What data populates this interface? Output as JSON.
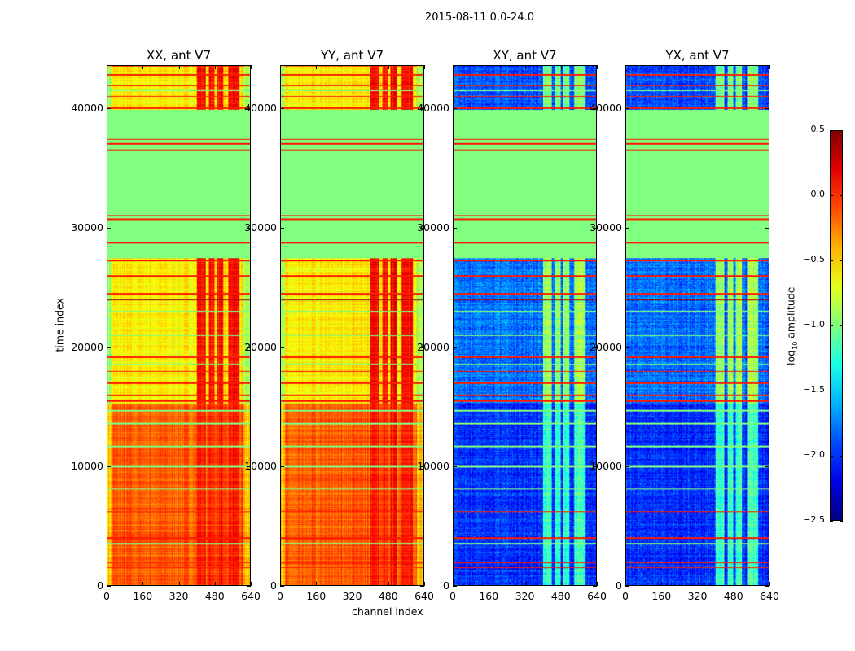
{
  "chart_data": {
    "type": "heatmap",
    "title": "2015-08-11 0.0-24.0",
    "xlabel": "channel index",
    "ylabel": "time index",
    "xlim": [
      0,
      640
    ],
    "ylim": [
      0,
      43630
    ],
    "xticks": [
      "0",
      "160",
      "320",
      "480",
      "640"
    ],
    "yticks": [
      "0",
      "10000",
      "20000",
      "30000",
      "40000"
    ],
    "colormap": "jet",
    "colorbar": {
      "label": "log10 amplitude",
      "label_main": "log",
      "label_sub": "10",
      "label_rest": " amplitude",
      "range": [
        -2.5,
        0.5
      ],
      "ticks": [
        "0.5",
        "0.0",
        "−0.5",
        "−1.0",
        "−1.5",
        "−2.0",
        "−2.5"
      ]
    },
    "panels": [
      {
        "title": "XX, ant V7",
        "kind": "auto"
      },
      {
        "title": "YY, ant V7",
        "kind": "auto"
      },
      {
        "title": "XY, ant V7",
        "kind": "cross"
      },
      {
        "title": "YX, ant V7",
        "kind": "cross"
      }
    ],
    "regions": [
      {
        "t": [
          0,
          15300
        ],
        "auto": -0.15,
        "auto_rfi": 0.05,
        "cross": -2.0,
        "cross_rfi": -1.2
      },
      {
        "t": [
          15300,
          27500
        ],
        "auto": -0.6,
        "auto_rfi": 0.1,
        "cross": -1.8,
        "cross_rfi": -0.9
      },
      {
        "t": [
          27500,
          40000
        ],
        "auto": -1.0,
        "auto_rfi": -1.0,
        "cross": -1.0,
        "cross_rfi": -1.0,
        "flagged": true
      },
      {
        "t": [
          40000,
          43630
        ],
        "auto": -0.6,
        "auto_rfi": 0.1,
        "cross": -1.9,
        "cross_rfi": -1.0
      }
    ],
    "rfi_channels": [
      [
        400,
        440
      ],
      [
        455,
        480
      ],
      [
        490,
        520
      ],
      [
        540,
        590
      ]
    ],
    "flag_lines_red": [
      1500,
      1900,
      4000,
      6200,
      15500,
      16000,
      17000,
      18000,
      19200,
      24500,
      26000,
      27300,
      28800,
      30800,
      31100,
      36600,
      37100,
      37500,
      40100,
      41100,
      42000,
      42900
    ],
    "flag_lines_green": [
      3500,
      8100,
      10000,
      11700,
      13600,
      14700,
      18600,
      21000,
      23000,
      29800,
      33000,
      34000,
      41600
    ],
    "dark_lines": [
      24000
    ],
    "colors": {
      "background": "#ffffff",
      "axis": "#000000"
    }
  }
}
